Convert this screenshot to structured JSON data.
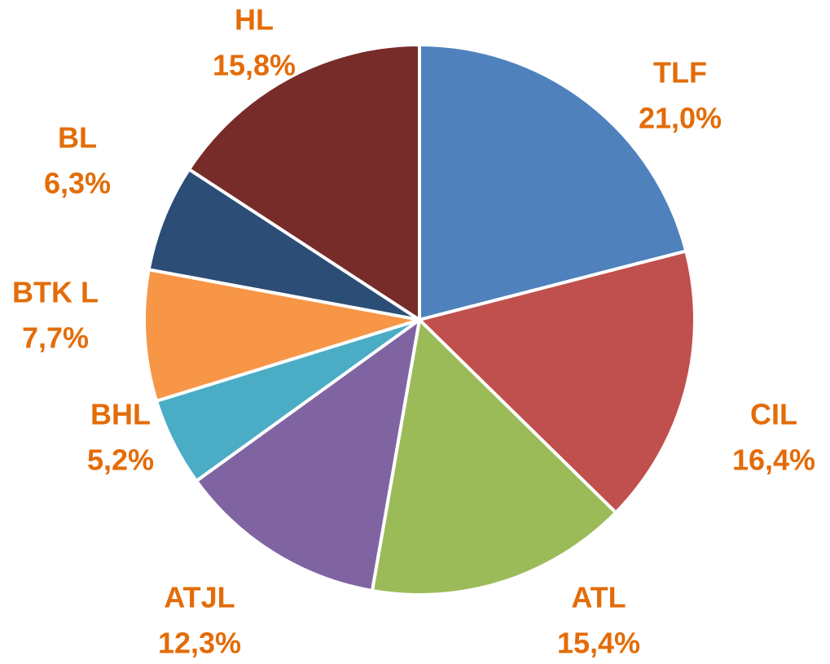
{
  "chart_data": {
    "type": "pie",
    "categories": [
      "TLF",
      "CIL",
      "ATL",
      "ATJL",
      "BHL",
      "BTK L",
      "BL",
      "HL"
    ],
    "values": [
      21.0,
      16.4,
      15.4,
      12.3,
      5.2,
      7.7,
      6.3,
      15.8
    ],
    "value_labels": [
      "21,0%",
      "16,4%",
      "15,4%",
      "12,3%",
      "5,2%",
      "7,7%",
      "6,3%",
      "15,8%"
    ],
    "colors": [
      "#4f81bd",
      "#c0504d",
      "#9bbb59",
      "#8064a2",
      "#4bacc6",
      "#f79646",
      "#2c4d75",
      "#772c2a"
    ]
  }
}
